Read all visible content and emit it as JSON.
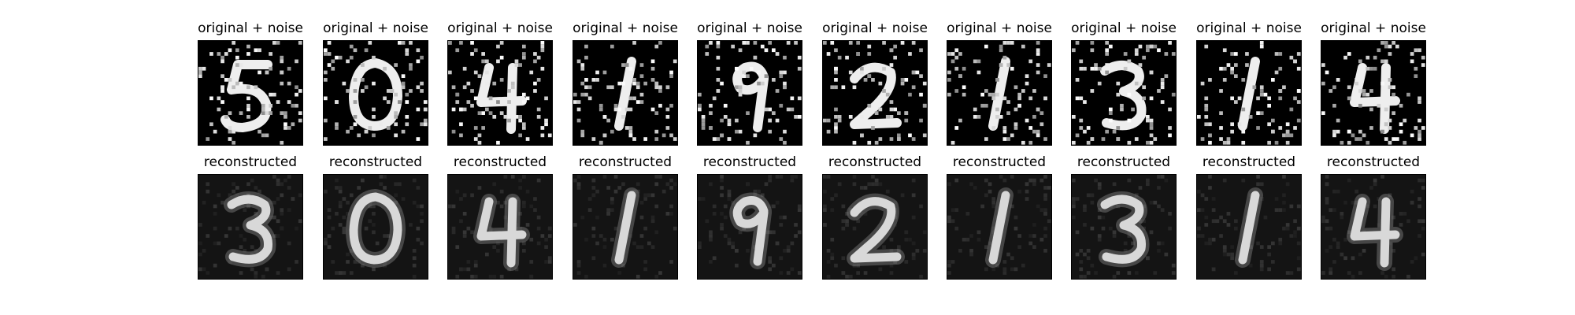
{
  "figure": {
    "row_titles": {
      "top": "original + noise",
      "bottom": "reconstructed"
    },
    "digits": [
      {
        "label": "5",
        "reconstructed": "3"
      },
      {
        "label": "0",
        "reconstructed": "0"
      },
      {
        "label": "4",
        "reconstructed": "4"
      },
      {
        "label": "1",
        "reconstructed": "1"
      },
      {
        "label": "9",
        "reconstructed": "9"
      },
      {
        "label": "2",
        "reconstructed": "2"
      },
      {
        "label": "1",
        "reconstructed": "1"
      },
      {
        "label": "3",
        "reconstructed": "3"
      },
      {
        "label": "1",
        "reconstructed": "1"
      },
      {
        "label": "4",
        "reconstructed": "4"
      }
    ],
    "colors": {
      "background": "#ffffff",
      "image_bg": "#000000",
      "stroke": "#ffffff",
      "noise": "#ffffff"
    }
  }
}
